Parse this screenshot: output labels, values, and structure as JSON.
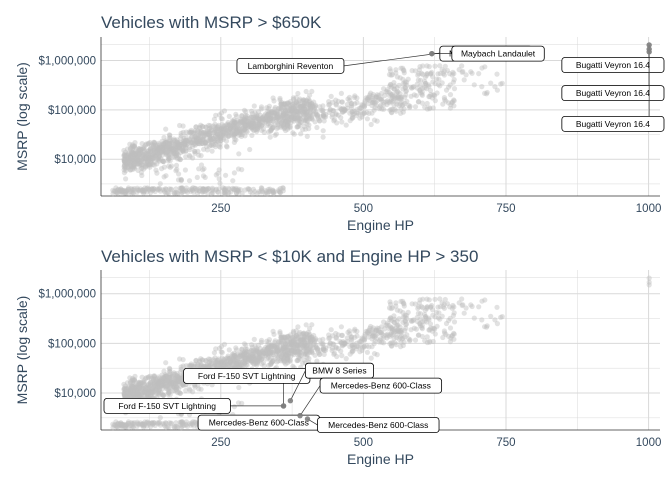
{
  "colors": {
    "background": "#ffffff",
    "grid": "#d9d9d9",
    "points": "#bfbfbf",
    "highlight": "#808080",
    "text": "#34495e",
    "label_border": "#000000"
  },
  "chart_data": [
    {
      "type": "scatter",
      "title": "Vehicles with MSRP > $650K",
      "xlabel": "Engine HP",
      "ylabel": "MSRP (log scale)",
      "xlim": [
        40,
        1020
      ],
      "ylim": [
        1800,
        3000000
      ],
      "y_scale": "log",
      "x_ticks": [
        250,
        500,
        750,
        1000
      ],
      "x_tick_labels": [
        "250",
        "500",
        "750",
        "1000"
      ],
      "y_ticks": [
        10000,
        100000,
        1000000
      ],
      "y_tick_labels": [
        "$10,000",
        "$100,000",
        "$1,000,000"
      ],
      "grid": true,
      "background_points": "many grey semi-transparent points spanning roughly 60–1000 HP and $2,000–$2,000,000",
      "highlighted": [
        {
          "label": "Lamborghini Reventon",
          "hp": 650,
          "msrp": 1500000
        },
        {
          "label": "Maybach Landaulet",
          "hp": 620,
          "msrp": 1380000
        },
        {
          "label": "Maybach Landaulet",
          "hp": 620,
          "msrp": 1380000
        },
        {
          "label": "Bugatti Veyron 16.4",
          "hp": 1001,
          "msrp": 2065000
        },
        {
          "label": "Bugatti Veyron 16.4",
          "hp": 1001,
          "msrp": 1705000
        },
        {
          "label": "Bugatti Veyron 16.4",
          "hp": 1001,
          "msrp": 1500000
        }
      ]
    },
    {
      "type": "scatter",
      "title": "Vehicles with MSRP < $10K and Engine HP > 350",
      "xlabel": "Engine HP",
      "ylabel": "MSRP (log scale)",
      "xlim": [
        40,
        1020
      ],
      "ylim": [
        1800,
        3000000
      ],
      "y_scale": "log",
      "x_ticks": [
        250,
        500,
        750,
        1000
      ],
      "x_tick_labels": [
        "250",
        "500",
        "750",
        "1000"
      ],
      "y_ticks": [
        10000,
        100000,
        1000000
      ],
      "y_tick_labels": [
        "$10,000",
        "$100,000",
        "$1,000,000"
      ],
      "grid": true,
      "background_points": "many grey semi-transparent points spanning roughly 60–1000 HP and $2,000–$2,000,000",
      "highlighted": [
        {
          "label": "Ford F-150 SVT Lightning",
          "hp": 360,
          "msrp": 5500
        },
        {
          "label": "Ford F-150 SVT Lightning",
          "hp": 360,
          "msrp": 5500
        },
        {
          "label": "BMW 8 Series",
          "hp": 372,
          "msrp": 7000
        },
        {
          "label": "Mercedes-Benz 600-Class",
          "hp": 389,
          "msrp": 3500
        },
        {
          "label": "Mercedes-Benz 600-Class",
          "hp": 389,
          "msrp": 3500
        },
        {
          "label": "Mercedes-Benz 600-Class",
          "hp": 402,
          "msrp": 3000
        }
      ]
    }
  ]
}
